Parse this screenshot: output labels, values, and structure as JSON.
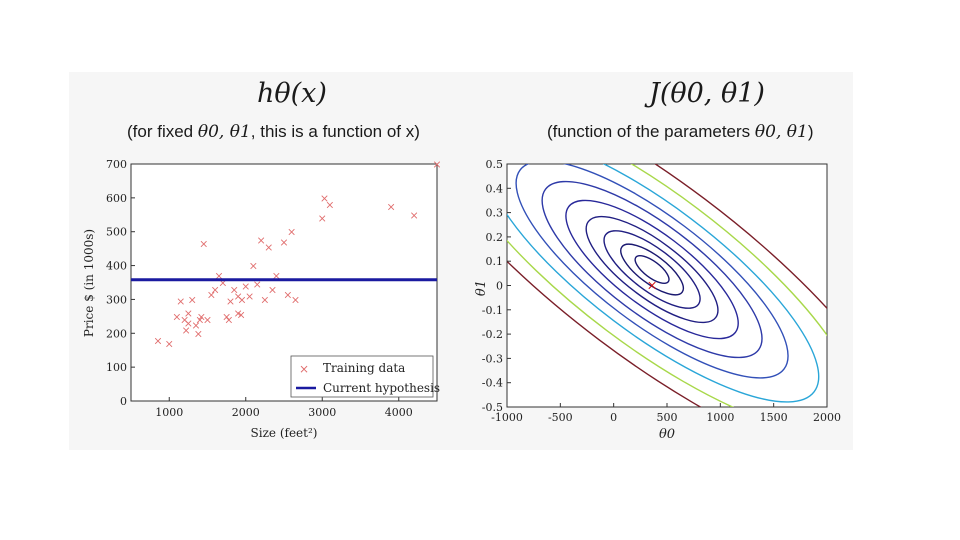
{
  "colors": {
    "hypothesis": "#1a1aa0",
    "training": "#e06c6c",
    "minimum": "#d01010",
    "contours": [
      "#1a1870",
      "#201e82",
      "#28289a",
      "#2e3aa8",
      "#3250b8",
      "#2aa6d8",
      "#a8d84a",
      "#7a1e28"
    ]
  },
  "left": {
    "title": "hθ(x)",
    "subtitle_pre": "(for fixed ",
    "subtitle_math": "θ0, θ1",
    "subtitle_post": ", this is a function of x)"
  },
  "right": {
    "title": "J(θ0, θ1)",
    "subtitle_pre": "(function of the parameters ",
    "subtitle_math": "θ0, θ1",
    "subtitle_post": ")"
  },
  "chart_data": [
    {
      "type": "scatter",
      "title": "hθ(x)",
      "xlabel": "Size (feet²)",
      "ylabel": "Price $ (in 1000s)",
      "xlim": [
        500,
        4500
      ],
      "ylim": [
        0,
        700
      ],
      "xticks": [
        "1000",
        "2000",
        "3000",
        "4000"
      ],
      "yticks": [
        "0",
        "100",
        "200",
        "300",
        "400",
        "500",
        "600",
        "700"
      ],
      "legend": [
        "Training data",
        "Current hypothesis"
      ],
      "legend_position": "bottom-right",
      "hypothesis_value": 358,
      "series": [
        {
          "name": "Training data",
          "points": [
            [
              852,
              178
            ],
            [
              1000,
              170
            ],
            [
              1100,
              250
            ],
            [
              1150,
              295
            ],
            [
              1200,
              240
            ],
            [
              1250,
              260
            ],
            [
              1250,
              230
            ],
            [
              1300,
              300
            ],
            [
              1350,
              225
            ],
            [
              1380,
              200
            ],
            [
              1400,
              240
            ],
            [
              1420,
              250
            ],
            [
              1450,
              465
            ],
            [
              1500,
              240
            ],
            [
              1550,
              315
            ],
            [
              1600,
              330
            ],
            [
              1650,
              370
            ],
            [
              1700,
              350
            ],
            [
              1750,
              250
            ],
            [
              1800,
              295
            ],
            [
              1850,
              330
            ],
            [
              1900,
              260
            ],
            [
              1900,
              310
            ],
            [
              1940,
              255
            ],
            [
              1950,
              300
            ],
            [
              2000,
              340
            ],
            [
              2050,
              310
            ],
            [
              2100,
              400
            ],
            [
              2150,
              345
            ],
            [
              2200,
              475
            ],
            [
              2250,
              300
            ],
            [
              2300,
              455
            ],
            [
              2350,
              330
            ],
            [
              2400,
              370
            ],
            [
              2500,
              470
            ],
            [
              2550,
              315
            ],
            [
              2600,
              500
            ],
            [
              2650,
              300
            ],
            [
              3000,
              540
            ],
            [
              3030,
              600
            ],
            [
              3100,
              580
            ],
            [
              3900,
              575
            ],
            [
              4200,
              550
            ],
            [
              4500,
              700
            ],
            [
              1780,
              240
            ],
            [
              1220,
              210
            ]
          ]
        }
      ]
    },
    {
      "type": "contour",
      "title": "J(θ0, θ1)",
      "xlabel": "θ0",
      "ylabel": "θ1",
      "xlim": [
        -1000,
        2000
      ],
      "ylim": [
        -0.5,
        0.5
      ],
      "xticks": [
        "-1000",
        "-500",
        "0",
        "500",
        "1000",
        "1500",
        "2000"
      ],
      "yticks": [
        "0.5",
        "0.4",
        "0.3",
        "0.2",
        "0.1",
        "0",
        "-0.1",
        "-0.2",
        "-0.3",
        "-0.4",
        "-0.5"
      ],
      "minimum": [
        360,
        0
      ],
      "marker": "×"
    }
  ]
}
